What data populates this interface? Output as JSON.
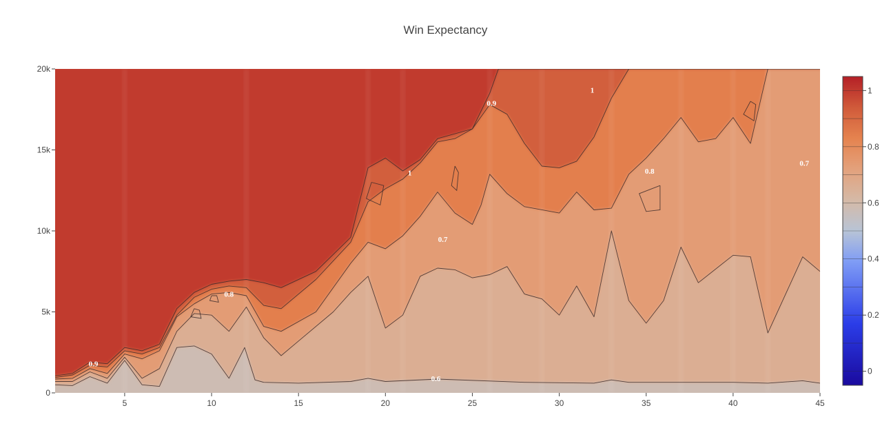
{
  "chart_data": {
    "type": "heatmap",
    "subtype": "contour",
    "title": "Win Expectancy",
    "xlabel": "",
    "ylabel": "",
    "xlim": [
      1,
      45
    ],
    "ylim": [
      0,
      20000
    ],
    "x_ticks": [
      5,
      10,
      15,
      20,
      25,
      30,
      35,
      40,
      45
    ],
    "x_tick_labels": [
      "5",
      "10",
      "15",
      "20",
      "25",
      "30",
      "35",
      "40",
      "45"
    ],
    "y_ticks": [
      0,
      5000,
      10000,
      15000,
      20000
    ],
    "y_tick_labels": [
      "0",
      "5k",
      "10k",
      "15k",
      "20k"
    ],
    "colorbar": {
      "range": [
        -0.05,
        1.05
      ],
      "ticks": [
        0,
        0.2,
        0.4,
        0.6,
        0.8,
        1
      ],
      "tick_labels": [
        "0",
        "0.2",
        "0.4",
        "0.6",
        "0.8",
        "1"
      ],
      "colorscale": [
        [
          0.0,
          "#1a0a9e"
        ],
        [
          0.2,
          "#2b3de8"
        ],
        [
          0.4,
          "#7f9cf5"
        ],
        [
          0.5,
          "#b8c4d6"
        ],
        [
          0.6,
          "#d5b9a6"
        ],
        [
          0.7,
          "#e3a17c"
        ],
        [
          0.8,
          "#e5834f"
        ],
        [
          0.9,
          "#d05a3a"
        ],
        [
          1.0,
          "#b41f26"
        ]
      ]
    },
    "contour_levels": [
      0.6,
      0.7,
      0.8,
      0.9,
      1.0
    ],
    "contour_labels": [
      {
        "text": "0.6",
        "x": 22.9,
        "y": 900
      },
      {
        "text": "0.7",
        "x": 23.3,
        "y": 9500
      },
      {
        "text": "0.7",
        "x": 44.1,
        "y": 14200
      },
      {
        "text": "0.8",
        "x": 11.0,
        "y": 6100
      },
      {
        "text": "0.8",
        "x": 35.2,
        "y": 13700
      },
      {
        "text": "0.9",
        "x": 3.2,
        "y": 1800
      },
      {
        "text": "0.9",
        "x": 26.1,
        "y": 17900
      },
      {
        "text": "1",
        "x": 21.4,
        "y": 13600
      },
      {
        "text": "1",
        "x": 31.9,
        "y": 18700
      }
    ],
    "boundaries": {
      "b06": [
        [
          1,
          500
        ],
        [
          2,
          450
        ],
        [
          3,
          1000
        ],
        [
          4,
          600
        ],
        [
          5,
          2000
        ],
        [
          6,
          500
        ],
        [
          7,
          400
        ],
        [
          8,
          2800
        ],
        [
          9,
          2900
        ],
        [
          10,
          2400
        ],
        [
          11,
          900
        ],
        [
          11.9,
          2800
        ],
        [
          12.5,
          800
        ],
        [
          13,
          650
        ],
        [
          15,
          600
        ],
        [
          18,
          700
        ],
        [
          19,
          900
        ],
        [
          20,
          700
        ],
        [
          23,
          850
        ],
        [
          28,
          650
        ],
        [
          32,
          600
        ],
        [
          33,
          800
        ],
        [
          34,
          650
        ],
        [
          40,
          650
        ],
        [
          42,
          600
        ],
        [
          44,
          750
        ],
        [
          45,
          600
        ]
      ],
      "b07": [
        [
          1,
          700
        ],
        [
          2,
          700
        ],
        [
          3,
          1300
        ],
        [
          4,
          900
        ],
        [
          5,
          2200
        ],
        [
          6,
          900
        ],
        [
          7,
          1500
        ],
        [
          8,
          3800
        ],
        [
          9,
          4900
        ],
        [
          10,
          4800
        ],
        [
          11,
          3800
        ],
        [
          12,
          5300
        ],
        [
          13,
          3400
        ],
        [
          14,
          2300
        ],
        [
          15,
          3200
        ],
        [
          17,
          5000
        ],
        [
          18,
          6200
        ],
        [
          19,
          7200
        ],
        [
          20,
          4000
        ],
        [
          21,
          4800
        ],
        [
          22,
          7200
        ],
        [
          23,
          7700
        ],
        [
          24,
          7600
        ],
        [
          25,
          7100
        ],
        [
          26,
          7300
        ],
        [
          27,
          7800
        ],
        [
          28,
          6100
        ],
        [
          29,
          5800
        ],
        [
          30,
          4800
        ],
        [
          31,
          6600
        ],
        [
          32,
          4700
        ],
        [
          33,
          10000
        ],
        [
          34,
          5700
        ],
        [
          35,
          4300
        ],
        [
          36,
          5700
        ],
        [
          37,
          9000
        ],
        [
          38,
          6800
        ],
        [
          40,
          8500
        ],
        [
          41,
          8400
        ],
        [
          42,
          3700
        ],
        [
          44,
          8400
        ],
        [
          45,
          7500
        ]
      ],
      "b08": [
        [
          1,
          850
        ],
        [
          2,
          900
        ],
        [
          3,
          1500
        ],
        [
          4,
          1200
        ],
        [
          5,
          2400
        ],
        [
          6,
          2100
        ],
        [
          7,
          2600
        ],
        [
          8,
          4700
        ],
        [
          9,
          5500
        ],
        [
          10,
          6100
        ],
        [
          11,
          6200
        ],
        [
          12,
          6000
        ],
        [
          13,
          4100
        ],
        [
          14,
          3800
        ],
        [
          16,
          5000
        ],
        [
          18,
          8000
        ],
        [
          19,
          9300
        ],
        [
          20,
          8900
        ],
        [
          21,
          9700
        ],
        [
          22,
          10900
        ],
        [
          23,
          12400
        ],
        [
          24,
          11100
        ],
        [
          25,
          10400
        ],
        [
          25.5,
          11600
        ],
        [
          26,
          13500
        ],
        [
          27,
          12300
        ],
        [
          28,
          11500
        ],
        [
          30,
          11100
        ],
        [
          31,
          12400
        ],
        [
          32,
          11300
        ],
        [
          33,
          11400
        ],
        [
          34,
          13500
        ],
        [
          35,
          14500
        ],
        [
          36,
          15700
        ],
        [
          37,
          17000
        ],
        [
          38,
          15500
        ],
        [
          39,
          15700
        ],
        [
          40,
          17000
        ],
        [
          41,
          15400
        ],
        [
          42,
          20000
        ],
        [
          45,
          20000
        ]
      ],
      "b09": [
        [
          1,
          950
        ],
        [
          2,
          1100
        ],
        [
          3,
          1700
        ],
        [
          4,
          1600
        ],
        [
          5,
          2600
        ],
        [
          6,
          2400
        ],
        [
          7,
          2800
        ],
        [
          8,
          4800
        ],
        [
          9,
          5900
        ],
        [
          10,
          6400
        ],
        [
          11,
          6600
        ],
        [
          12,
          6500
        ],
        [
          13,
          5400
        ],
        [
          14,
          5200
        ],
        [
          16,
          7000
        ],
        [
          18,
          9300
        ],
        [
          19,
          11800
        ],
        [
          20,
          12600
        ],
        [
          21,
          13200
        ],
        [
          22,
          14200
        ],
        [
          23,
          15500
        ],
        [
          24,
          15700
        ],
        [
          25,
          16300
        ],
        [
          26,
          17800
        ],
        [
          27,
          17200
        ],
        [
          28,
          15400
        ],
        [
          29,
          14000
        ],
        [
          30,
          13900
        ],
        [
          31,
          14300
        ],
        [
          32,
          15800
        ],
        [
          33,
          18200
        ],
        [
          34,
          20000
        ],
        [
          45,
          20000
        ]
      ],
      "b10": [
        [
          1,
          1050
        ],
        [
          2,
          1200
        ],
        [
          3,
          1900
        ],
        [
          4,
          1800
        ],
        [
          5,
          2800
        ],
        [
          6,
          2600
        ],
        [
          7,
          3000
        ],
        [
          8,
          5200
        ],
        [
          9,
          6200
        ],
        [
          10,
          6700
        ],
        [
          11,
          6900
        ],
        [
          12,
          7000
        ],
        [
          13,
          6800
        ],
        [
          14,
          6500
        ],
        [
          16,
          7500
        ],
        [
          18,
          9600
        ],
        [
          19,
          13900
        ],
        [
          20,
          14500
        ],
        [
          21,
          13700
        ],
        [
          22,
          14400
        ],
        [
          23,
          15700
        ],
        [
          25,
          16300
        ],
        [
          26,
          18500
        ],
        [
          26.5,
          20000
        ],
        [
          45,
          20000
        ]
      ]
    }
  }
}
